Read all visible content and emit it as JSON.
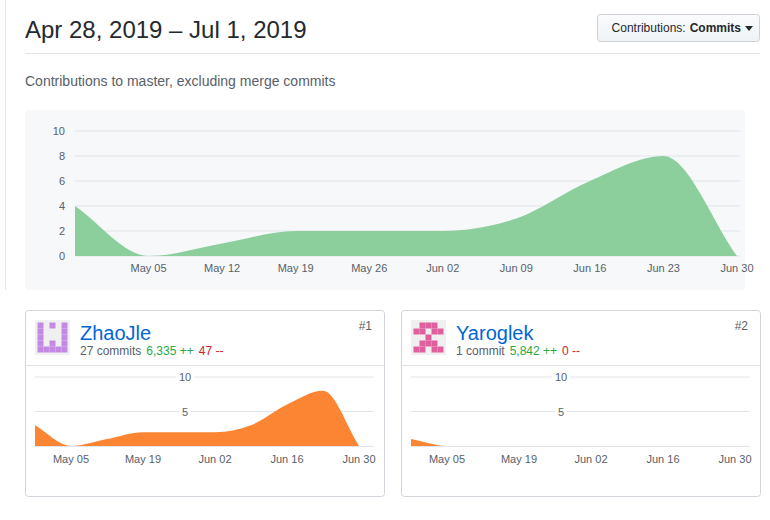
{
  "header": {
    "title": "Apr 28, 2019 – Jul 1, 2019",
    "subtitle": "Contributions to master, excluding merge commits",
    "button_label": "Contributions:",
    "button_value": "Commits"
  },
  "chart_data": [
    {
      "type": "area",
      "categories": [
        null,
        "May 05",
        "May 12",
        "May 19",
        "May 26",
        "Jun 02",
        "Jun 09",
        "Jun 16",
        "Jun 23",
        "Jun 30"
      ],
      "values": [
        4,
        0,
        1,
        2,
        2,
        2,
        3,
        6,
        8,
        0
      ],
      "color": "#8ccf9d",
      "ylim": [
        0,
        10
      ],
      "yticks": [
        0,
        2,
        4,
        6,
        8,
        10
      ],
      "grid": true
    },
    {
      "type": "area",
      "categories": [
        null,
        "May 05",
        null,
        "May 19",
        null,
        "Jun 02",
        null,
        "Jun 16",
        null,
        "Jun 30"
      ],
      "values": [
        3,
        0,
        1,
        2,
        2,
        2,
        3,
        6,
        8,
        0
      ],
      "color": "#fb8532",
      "ylim": [
        0,
        10
      ],
      "yticks": [
        5,
        10
      ],
      "grid": true
    },
    {
      "type": "area",
      "categories": [
        null,
        "May 05",
        null,
        "May 19",
        null,
        "Jun 02",
        null,
        "Jun 16",
        null,
        "Jun 30"
      ],
      "values": [
        1,
        0,
        0,
        0,
        0,
        0,
        0,
        0,
        0,
        0
      ],
      "color": "#fb8532",
      "ylim": [
        0,
        10
      ],
      "yticks": [
        5,
        10
      ],
      "grid": true
    }
  ],
  "contributors": [
    {
      "rank": "#1",
      "name": "ZhaoJle",
      "commits": "27 commits",
      "additions": "6,335 ++",
      "deletions": "47 --"
    },
    {
      "rank": "#2",
      "name": "Yaroglek",
      "commits": "1 commit",
      "additions": "5,842 ++",
      "deletions": "0 --"
    }
  ]
}
